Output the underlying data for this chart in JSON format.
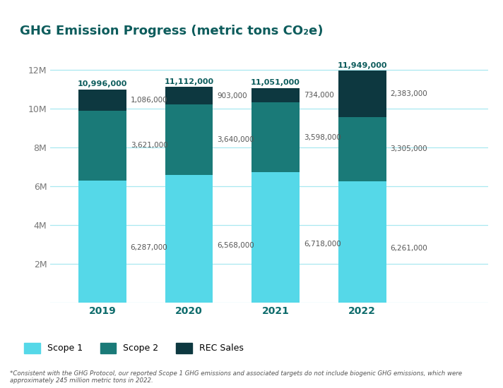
{
  "title": "GHG Emission Progress (metric tons CO₂e)",
  "years": [
    "2019",
    "2020",
    "2021",
    "2022"
  ],
  "scope1": [
    6287000,
    6568000,
    6718000,
    6261000
  ],
  "scope2": [
    3621000,
    3640000,
    3598000,
    3305000
  ],
  "rec_sales": [
    1086000,
    903000,
    734000,
    2383000
  ],
  "totals": [
    10996000,
    11112000,
    11051000,
    11949000
  ],
  "color_scope1": "#55D8E8",
  "color_scope2": "#1A7A78",
  "color_rec": "#0D3840",
  "color_title": "#0D5C5C",
  "color_xlabel": "#0D6B6B",
  "color_grid": "#A8E8F0",
  "color_label": "#555555",
  "background_color": "#FFFFFF",
  "ylabel_ticks": [
    "",
    "2M",
    "4M",
    "6M",
    "8M",
    "10M",
    "12M"
  ],
  "ylabel_values": [
    0,
    2000000,
    4000000,
    6000000,
    8000000,
    10000000,
    12000000
  ],
  "footnote": "*Consistent with the GHG Protocol, our reported Scope 1 GHG emissions and associated targets do not include biogenic GHG emissions, which were approximately 245 million metric tons in 2022.",
  "legend_labels": [
    "Scope 1",
    "Scope 2",
    "REC Sales"
  ],
  "bar_width": 0.55
}
